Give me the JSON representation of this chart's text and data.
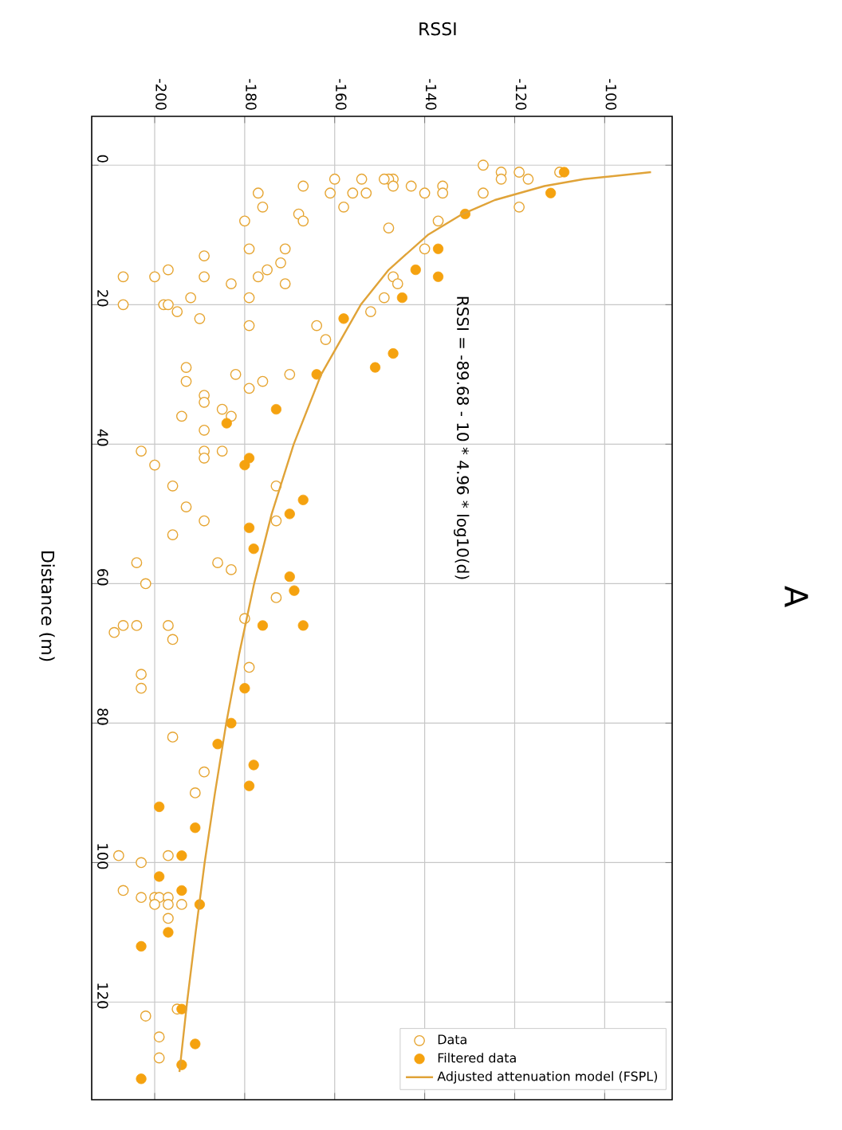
{
  "chart_data": {
    "type": "scatter",
    "title": "A",
    "xlabel": "RSSI",
    "ylabel": "Distance (m)",
    "annotations": [
      "RSSI = -89.68 - 10 * 4.96 * log10(d)"
    ],
    "xlim": [
      -214,
      -85
    ],
    "ylim": [
      134,
      -7
    ],
    "xticks": [
      -200,
      -180,
      -160,
      -140,
      -120,
      -100
    ],
    "yticks": [
      0,
      20,
      40,
      60,
      80,
      100,
      120
    ],
    "grid": true,
    "legend": "bottom right",
    "series": [
      {
        "name": "Data",
        "marker": "circle",
        "color": "#e6a532",
        "values": [
          0,
          1,
          1,
          2,
          1,
          2,
          4,
          6,
          3,
          4,
          4,
          3,
          2,
          2,
          3,
          2,
          2,
          4,
          4,
          2,
          4,
          6,
          3,
          4,
          7,
          8,
          6,
          8,
          9,
          8,
          12,
          12,
          12,
          13,
          14,
          15,
          16,
          17,
          17,
          16,
          15,
          16,
          16,
          20,
          20,
          20,
          21,
          19,
          22,
          19,
          23,
          19,
          16,
          17,
          21,
          23,
          25,
          29,
          31,
          30,
          32,
          31,
          30,
          33,
          34,
          35,
          36,
          36,
          38,
          41,
          41,
          41,
          43,
          42,
          46,
          46,
          49,
          51,
          53,
          51,
          57,
          60,
          57,
          58,
          62,
          66,
          68,
          67,
          66,
          66,
          65,
          72,
          73,
          75,
          82,
          87,
          90,
          99,
          100,
          99,
          104,
          105,
          105,
          105,
          105,
          106,
          106,
          106,
          108,
          121,
          122,
          125,
          128
        ],
        "x": [
          -127,
          -123,
          -119,
          -117,
          -110,
          -123,
          -127,
          -119,
          -136,
          -136,
          -140,
          -143,
          -147,
          -148,
          -147,
          -149,
          -154,
          -153,
          -156,
          -160,
          -161,
          -158,
          -167,
          -177,
          -168,
          -167,
          -176,
          -180,
          -148,
          -137,
          -140,
          -171,
          -179,
          -189,
          -172,
          -175,
          -177,
          -171,
          -183,
          -189,
          -197,
          -200,
          -207,
          -207,
          -198,
          -197,
          -195,
          -192,
          -190,
          -179,
          -179,
          -149,
          -147,
          -146,
          -152,
          -164,
          -162,
          -193,
          -193,
          -182,
          -179,
          -176,
          -170,
          -189,
          -189,
          -185,
          -183,
          -194,
          -189,
          -189,
          -185,
          -203,
          -200,
          -189,
          -173,
          -196,
          -193,
          -189,
          -196,
          -173,
          -204,
          -202,
          -186,
          -183,
          -173,
          -197,
          -196,
          -209,
          -207,
          -204,
          -180,
          -179,
          -203,
          -203,
          -196,
          -189,
          -191,
          -208,
          -203,
          -197,
          -207,
          -203,
          -200,
          -199,
          -197,
          -200,
          -197,
          -194,
          -197,
          -195,
          -202,
          -199,
          -199
        ]
      },
      {
        "name": "Filtered data",
        "marker": "circle",
        "color": "#f5a20f",
        "values": [
          1,
          4,
          7,
          12,
          15,
          16,
          19,
          22,
          27,
          29,
          30,
          35,
          37,
          42,
          43,
          48,
          50,
          52,
          55,
          59,
          61,
          66,
          66,
          75,
          80,
          83,
          86,
          89,
          92,
          95,
          99,
          102,
          104,
          106,
          110,
          112,
          121,
          126,
          129,
          131
        ],
        "x": [
          -109,
          -112,
          -131,
          -137,
          -142,
          -137,
          -145,
          -158,
          -147,
          -151,
          -164,
          -173,
          -184,
          -179,
          -180,
          -167,
          -170,
          -179,
          -178,
          -170,
          -169,
          -176,
          -167,
          -180,
          -183,
          -186,
          -178,
          -179,
          -199,
          -191,
          -194,
          -199,
          -194,
          -190,
          -197,
          -203,
          -194,
          -191,
          -194,
          -203
        ]
      },
      {
        "name": "Adjusted attenuation model (FSPL)",
        "type": "line",
        "marker": "none",
        "line_style": "solid",
        "color": "#e0a338",
        "values": [
          1,
          2,
          3,
          5,
          7,
          10,
          15,
          20,
          30,
          40,
          50,
          60,
          70,
          80,
          90,
          100,
          110,
          120,
          130
        ],
        "x": [
          -89.7,
          -104.6,
          -113.4,
          -124.4,
          -131.6,
          -139.3,
          -148.0,
          -154.2,
          -163.0,
          -169.1,
          -174.0,
          -177.9,
          -181.2,
          -184.1,
          -186.6,
          -188.9,
          -190.9,
          -192.8,
          -194.5
        ]
      }
    ]
  }
}
